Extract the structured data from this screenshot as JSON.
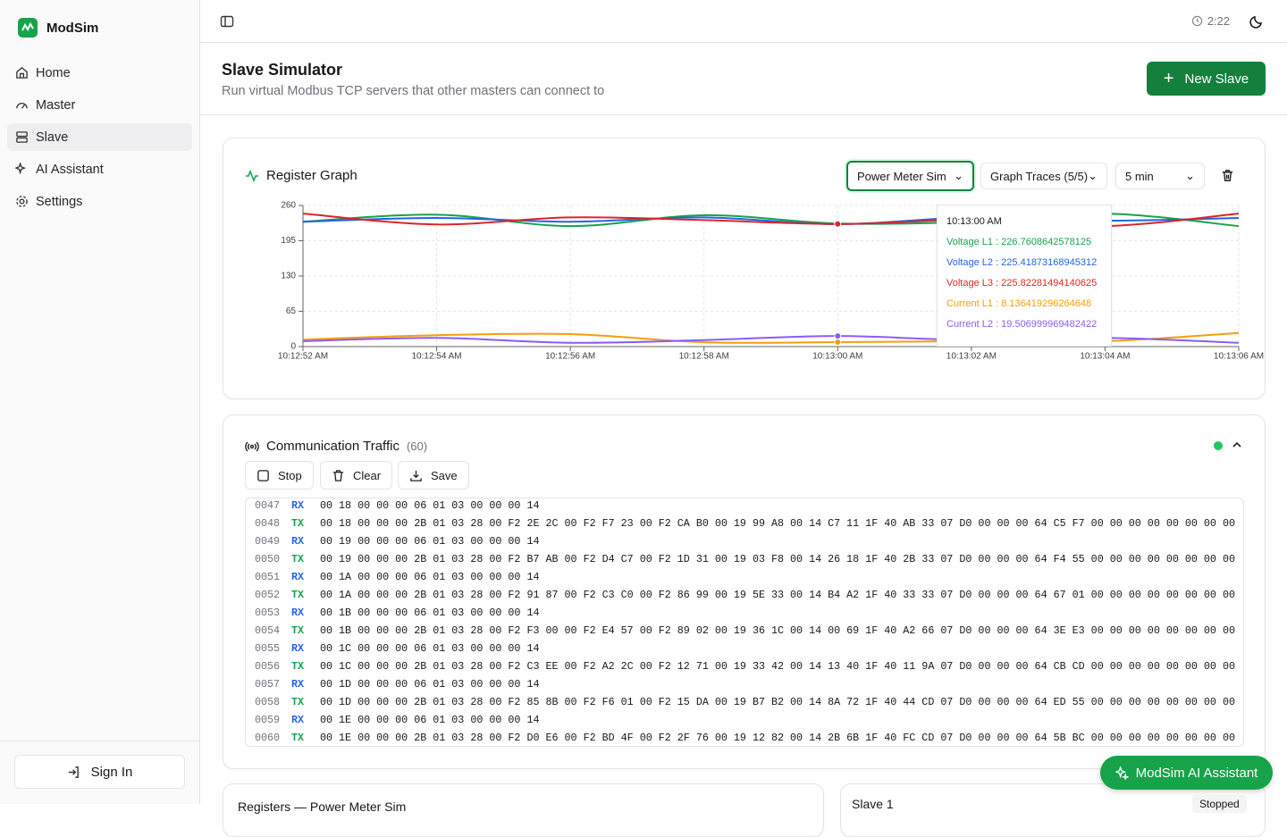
{
  "sidebar": {
    "brand": "ModSim",
    "nav": [
      "Home",
      "Master",
      "Slave",
      "AI Assistant",
      "Settings"
    ],
    "sign_in": "Sign In"
  },
  "topbar": {
    "time": "2:22"
  },
  "header": {
    "title": "Slave Simulator",
    "subtitle": "Run virtual Modbus TCP servers that other masters can connect to",
    "new_button": "New Slave"
  },
  "graph_card": {
    "title": "Register Graph",
    "device_select": "Power Meter Sim",
    "traces_select": "Graph Traces (5/5)",
    "range_select": "5 min"
  },
  "chart_data": {
    "type": "line",
    "categories": [
      "10:12:52 AM",
      "10:12:54 AM",
      "10:12:56 AM",
      "10:12:58 AM",
      "10:13:00 AM",
      "10:13:02 AM",
      "10:13:04 AM",
      "10:13:06 AM"
    ],
    "series": [
      {
        "name": "Voltage L1",
        "color": "#16a34a",
        "values": [
          230,
          243,
          222,
          242,
          226.7608642578125,
          230,
          245,
          222
        ]
      },
      {
        "name": "Voltage L2",
        "color": "#2563eb",
        "values": [
          230,
          237,
          230,
          238,
          225.41873168945312,
          238,
          232,
          237
        ]
      },
      {
        "name": "Voltage L3",
        "color": "#dc2626",
        "values": [
          245,
          225,
          238,
          233,
          225.82281494140625,
          233,
          222,
          245
        ]
      },
      {
        "name": "Current L1",
        "color": "#f59e0b",
        "values": [
          13,
          21,
          23,
          8,
          8.136419296264648,
          10,
          10,
          25
        ]
      },
      {
        "name": "Current L2",
        "color": "#8b5cf6",
        "values": [
          10,
          16,
          7,
          12,
          19.506999969482422,
          12,
          16,
          7
        ]
      }
    ],
    "ylim": [
      0,
      260
    ],
    "yticks": [
      0,
      65,
      130,
      195,
      260
    ],
    "grid": true,
    "tooltip_at": "10:13:00 AM"
  },
  "traffic": {
    "title": "Communication Traffic",
    "count": 60,
    "buttons": [
      "Stop",
      "Clear",
      "Save"
    ],
    "rows": [
      {
        "n": "0047",
        "dir": "RX",
        "hex": "00 18 00 00 00 06 01 03 00 00 00 14"
      },
      {
        "n": "0048",
        "dir": "TX",
        "hex": "00 18 00 00 00 2B 01 03 28 00 F2 2E 2C 00 F2 F7 23 00 F2 CA B0 00 19 99 A8 00 14 C7 11 1F 40 AB 33 07 D0 00 00 00 64 C5 F7 00 00 00 00 00 00 00 00"
      },
      {
        "n": "0049",
        "dir": "RX",
        "hex": "00 19 00 00 00 06 01 03 00 00 00 14"
      },
      {
        "n": "0050",
        "dir": "TX",
        "hex": "00 19 00 00 00 2B 01 03 28 00 F2 B7 AB 00 F2 D4 C7 00 F2 1D 31 00 19 03 F8 00 14 26 18 1F 40 2B 33 07 D0 00 00 00 64 F4 55 00 00 00 00 00 00 00 00"
      },
      {
        "n": "0051",
        "dir": "RX",
        "hex": "00 1A 00 00 00 06 01 03 00 00 00 14"
      },
      {
        "n": "0052",
        "dir": "TX",
        "hex": "00 1A 00 00 00 2B 01 03 28 00 F2 91 87 00 F2 C3 C0 00 F2 86 99 00 19 5E 33 00 14 B4 A2 1F 40 33 33 07 D0 00 00 00 64 67 01 00 00 00 00 00 00 00 00"
      },
      {
        "n": "0053",
        "dir": "RX",
        "hex": "00 1B 00 00 00 06 01 03 00 00 00 14"
      },
      {
        "n": "0054",
        "dir": "TX",
        "hex": "00 1B 00 00 00 2B 01 03 28 00 F2 F3 00 00 F2 E4 57 00 F2 89 02 00 19 36 1C 00 14 00 69 1F 40 A2 66 07 D0 00 00 00 64 3E E3 00 00 00 00 00 00 00 00"
      },
      {
        "n": "0055",
        "dir": "RX",
        "hex": "00 1C 00 00 00 06 01 03 00 00 00 14"
      },
      {
        "n": "0056",
        "dir": "TX",
        "hex": "00 1C 00 00 00 2B 01 03 28 00 F2 C3 EE 00 F2 A2 2C 00 F2 12 71 00 19 33 42 00 14 13 40 1F 40 11 9A 07 D0 00 00 00 64 CB CD 00 00 00 00 00 00 00 00"
      },
      {
        "n": "0057",
        "dir": "RX",
        "hex": "00 1D 00 00 00 06 01 03 00 00 00 14"
      },
      {
        "n": "0058",
        "dir": "TX",
        "hex": "00 1D 00 00 00 2B 01 03 28 00 F2 85 8B 00 F2 F6 01 00 F2 15 DA 00 19 B7 B2 00 14 8A 72 1F 40 44 CD 07 D0 00 00 00 64 ED 55 00 00 00 00 00 00 00 00"
      },
      {
        "n": "0059",
        "dir": "RX",
        "hex": "00 1E 00 00 00 06 01 03 00 00 00 14"
      },
      {
        "n": "0060",
        "dir": "TX",
        "hex": "00 1E 00 00 00 2B 01 03 28 00 F2 D0 E6 00 F2 BD 4F 00 F2 2F 76 00 19 12 82 00 14 2B 6B 1F 40 FC CD 07 D0 00 00 00 64 5B BC 00 00 00 00 00 00 00 00"
      }
    ]
  },
  "bottom": {
    "registers_title": "Registers — Power Meter Sim",
    "slave_name": "Slave 1",
    "status": "Stopped"
  },
  "assistant_button": "ModSim AI Assistant"
}
